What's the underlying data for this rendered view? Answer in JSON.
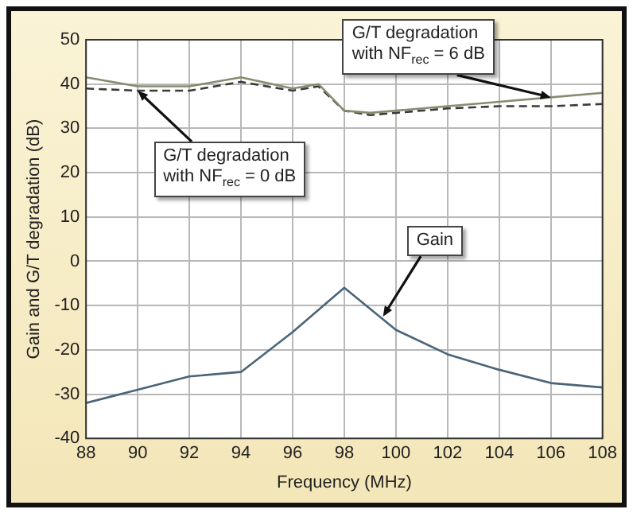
{
  "chart_data": {
    "type": "line",
    "xlabel": "Frequency (MHz)",
    "ylabel": "Gain and G/T degradation (dB)",
    "xlim": [
      88,
      108
    ],
    "xticks": [
      88,
      90,
      92,
      94,
      96,
      98,
      100,
      102,
      104,
      106,
      108
    ],
    "ylim": [
      -40,
      50
    ],
    "yticks": [
      -40,
      -30,
      -20,
      -10,
      0,
      10,
      20,
      30,
      40,
      50
    ],
    "grid": true,
    "legend": false,
    "marker": "none",
    "series": [
      {
        "color": "#8a8a70",
        "line_style": "solid",
        "x": [
          88,
          90,
          92,
          94,
          96,
          97,
          98,
          99,
          100,
          102,
          104,
          106,
          108
        ],
        "values": [
          41.5,
          39.5,
          39.5,
          41.5,
          39,
          40,
          34,
          33.5,
          34,
          35,
          36,
          37,
          38
        ]
      },
      {
        "color": "#3a3a3a",
        "line_style": "dashed",
        "x": [
          88,
          90,
          92,
          94,
          96,
          97,
          98,
          99,
          100,
          102,
          104,
          106,
          108
        ],
        "values": [
          39,
          38.5,
          38.5,
          40.5,
          38.5,
          39.5,
          34,
          33,
          33.5,
          34.5,
          35,
          35,
          35.5
        ]
      },
      {
        "color": "#4a6478",
        "line_style": "solid",
        "x": [
          88,
          90,
          92,
          94,
          96,
          98,
          100,
          102,
          104,
          106,
          108
        ],
        "values": [
          -32,
          -29,
          -26,
          -25,
          -16,
          -6,
          -15.5,
          -21,
          -24.5,
          -27.5,
          -28.5
        ]
      }
    ],
    "annotations": [
      {
        "text": "G/T degradation with NF$_{rec}$ = 6 dB",
        "x": 106,
        "y": 37
      },
      {
        "text": "G/T degradation with NF$_{rec}$ = 0 dB",
        "x": 90,
        "y": 38.5
      },
      {
        "text": "Gain",
        "x": 99.5,
        "y": -12.5
      }
    ]
  }
}
